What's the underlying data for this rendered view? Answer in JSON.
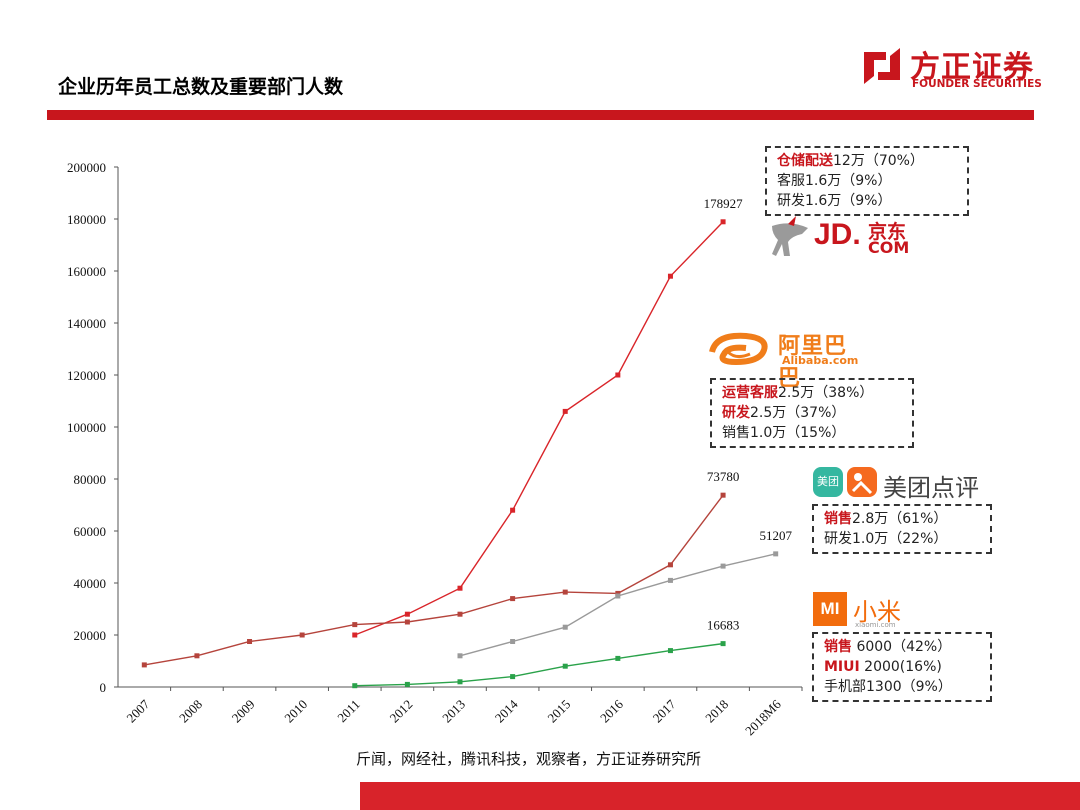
{
  "header": {
    "title": "企业历年员工总数及重要部门人数"
  },
  "logo": {
    "name_cn": "方正证券",
    "name_en": "FOUNDER SECURITIES",
    "color": "#c8161d"
  },
  "brands": {
    "jd": {
      "logo_text": "JD.",
      "logo_cn": "京东",
      "logo_sub": "COM"
    },
    "alibaba": {
      "logo_cn": "阿里巴巴",
      "logo_en": "Alibaba.com"
    },
    "meituan": {
      "badge": "美团",
      "logo_cn": "美团点评"
    },
    "xiaomi": {
      "logo_mi": "MI",
      "logo_cn": "小米",
      "logo_url": "xiaomi.com"
    }
  },
  "boxes": {
    "jd": [
      {
        "hl": "仓储配送",
        "rest": "12万（70%）"
      },
      {
        "hl": "",
        "rest": "客服1.6万（9%）"
      },
      {
        "hl": "",
        "rest": "研发1.6万（9%）"
      }
    ],
    "alibaba": [
      {
        "hl": "运营客服",
        "rest": "2.5万（38%）"
      },
      {
        "hl": "研发",
        "rest": "2.5万（37%）"
      },
      {
        "hl": "",
        "rest": "销售1.0万（15%）"
      }
    ],
    "meituan": [
      {
        "hl": "销售",
        "rest": "2.8万（61%）"
      },
      {
        "hl": "",
        "rest": "研发1.0万（22%）"
      }
    ],
    "xiaomi": [
      {
        "hl": "销售",
        "rest": " 6000（42%）"
      },
      {
        "hl": "MIUI",
        "rest": " 2000(16%)"
      },
      {
        "hl": "",
        "rest": "手机部1300（9%）"
      }
    ]
  },
  "source": "斤闻，网经社，腾讯科技，观察者，方正证券研究所",
  "chart_data": {
    "type": "line",
    "categories": [
      "2007",
      "2008",
      "2009",
      "2010",
      "2011",
      "2012",
      "2013",
      "2014",
      "2015",
      "2016",
      "2017",
      "2018",
      "2018M6"
    ],
    "ylim": [
      0,
      200000
    ],
    "yticks": [
      0,
      20000,
      40000,
      60000,
      80000,
      100000,
      120000,
      140000,
      160000,
      180000,
      200000
    ],
    "series": [
      {
        "key": "jd",
        "color": "#d9252a",
        "values": [
          null,
          null,
          null,
          null,
          20000,
          28000,
          38000,
          68000,
          106000,
          120000,
          158000,
          178927,
          null
        ],
        "end_label": "178927"
      },
      {
        "key": "alibaba",
        "color": "#b5443c",
        "values": [
          8500,
          12000,
          17500,
          20000,
          24000,
          25000,
          28000,
          34000,
          36500,
          36000,
          47000,
          73780,
          null
        ],
        "end_label": "73780"
      },
      {
        "key": "meituan",
        "color": "#9a9a9a",
        "values": [
          null,
          null,
          null,
          null,
          null,
          null,
          12000,
          17500,
          23000,
          35000,
          41000,
          46500,
          51207
        ],
        "end_label": "51207"
      },
      {
        "key": "xiaomi",
        "color": "#2aa24a",
        "values": [
          null,
          null,
          null,
          null,
          500,
          1000,
          2000,
          4000,
          8000,
          11000,
          14000,
          16683,
          null
        ],
        "end_label": "16683"
      }
    ]
  }
}
